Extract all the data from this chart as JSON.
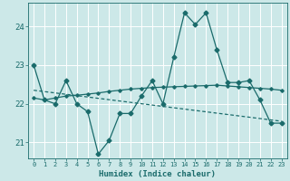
{
  "xlabel": "Humidex (Indice chaleur)",
  "bg_color": "#cce8e8",
  "grid_color": "#ffffff",
  "line_color": "#1a6b6b",
  "xlim": [
    -0.5,
    23.5
  ],
  "ylim": [
    20.6,
    24.6
  ],
  "yticks": [
    21,
    22,
    23,
    24
  ],
  "xticks": [
    0,
    1,
    2,
    3,
    4,
    5,
    6,
    7,
    8,
    9,
    10,
    11,
    12,
    13,
    14,
    15,
    16,
    17,
    18,
    19,
    20,
    21,
    22,
    23
  ],
  "line1_x": [
    0,
    1,
    2,
    3,
    4,
    5,
    6,
    7,
    8,
    9,
    10,
    11,
    12,
    13,
    14,
    15,
    16,
    17,
    18,
    19,
    20,
    21,
    22,
    23
  ],
  "line1_y": [
    23.0,
    22.1,
    22.0,
    22.6,
    22.0,
    21.8,
    20.7,
    21.05,
    21.75,
    21.75,
    22.2,
    22.6,
    22.0,
    23.2,
    24.35,
    24.05,
    24.35,
    23.4,
    22.55,
    22.55,
    22.6,
    22.1,
    21.5,
    21.5
  ],
  "line2_x": [
    0,
    1,
    2,
    3,
    4,
    5,
    6,
    7,
    8,
    9,
    10,
    11,
    12,
    13,
    14,
    15,
    16,
    17,
    18,
    19,
    20,
    21,
    22,
    23
  ],
  "line2_y": [
    22.15,
    22.1,
    22.15,
    22.2,
    22.22,
    22.25,
    22.28,
    22.32,
    22.35,
    22.38,
    22.4,
    22.42,
    22.43,
    22.44,
    22.45,
    22.46,
    22.47,
    22.48,
    22.46,
    22.44,
    22.42,
    22.4,
    22.38,
    22.35
  ],
  "line3_x": [
    0,
    23
  ],
  "line3_y": [
    22.35,
    21.55
  ]
}
